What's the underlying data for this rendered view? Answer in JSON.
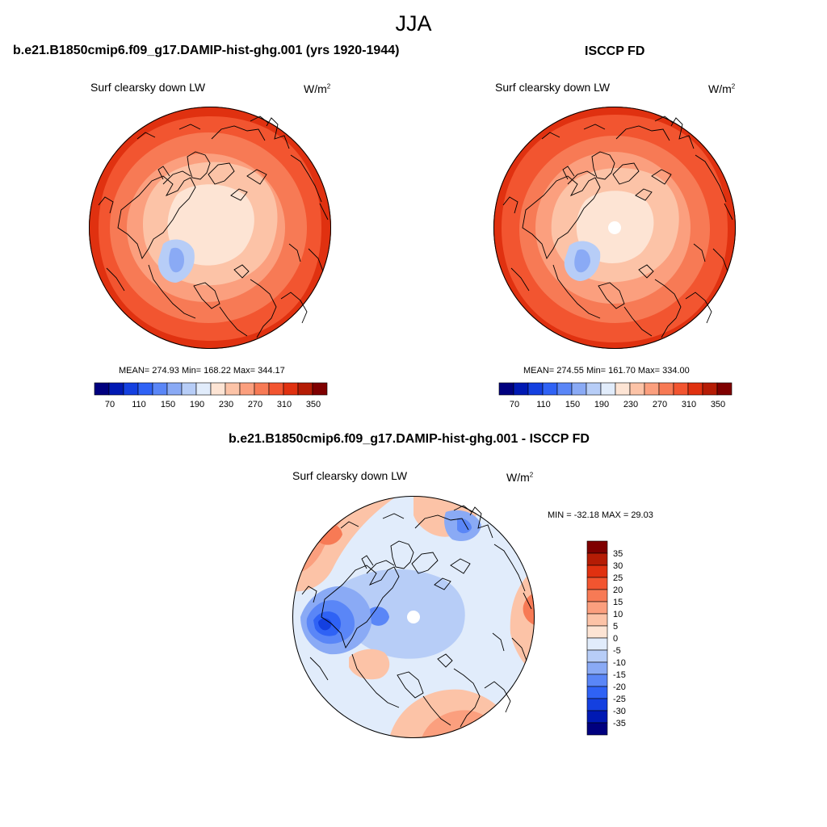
{
  "title": "JJA",
  "panels": [
    {
      "id": "model",
      "heading": "b.e21.B1850cmip6.f09_g17.DAMIP-hist-ghg.001 (yrs 1920-1944)",
      "variable": "Surf clearsky down LW",
      "units_base": "W/m",
      "units_sup": "2",
      "stats": "MEAN= 274.93  Min= 168.22  Max= 344.17",
      "colorbar_ticks": [
        "70",
        "110",
        "150",
        "190",
        "230",
        "270",
        "310",
        "350"
      ],
      "colorbar_colors": [
        "#00007f",
        "#0019b3",
        "#1440e0",
        "#2f62f5",
        "#5a86f7",
        "#8aaaf5",
        "#b7cdf7",
        "#e1ecfb",
        "#fde4d4",
        "#fcc3a7",
        "#fb9f7e",
        "#f77a55",
        "#f25530",
        "#e03110",
        "#b51c05",
        "#7f0000"
      ]
    },
    {
      "id": "obs",
      "heading": "ISCCP FD",
      "variable": "Surf clearsky down LW",
      "units_base": "W/m",
      "units_sup": "2",
      "stats": "MEAN= 274.55  Min= 161.70  Max= 334.00",
      "colorbar_ticks": [
        "70",
        "110",
        "150",
        "190",
        "230",
        "270",
        "310",
        "350"
      ],
      "colorbar_colors": [
        "#00007f",
        "#0019b3",
        "#1440e0",
        "#2f62f5",
        "#5a86f7",
        "#8aaaf5",
        "#b7cdf7",
        "#e1ecfb",
        "#fde4d4",
        "#fcc3a7",
        "#fb9f7e",
        "#f77a55",
        "#f25530",
        "#e03110",
        "#b51c05",
        "#7f0000"
      ]
    },
    {
      "id": "diff",
      "heading": "b.e21.B1850cmip6.f09_g17.DAMIP-hist-ghg.001 - ISCCP FD",
      "variable": "Surf clearsky down LW",
      "units_base": "W/m",
      "units_sup": "2",
      "stats": "MIN = -32.18 MAX =  29.03",
      "colorbar_ticks": [
        "35",
        "30",
        "25",
        "20",
        "15",
        "10",
        "5",
        "0",
        "-5",
        "-10",
        "-15",
        "-20",
        "-25",
        "-30",
        "-35"
      ],
      "colorbar_colors": [
        "#7f0000",
        "#b51c05",
        "#e03110",
        "#f25530",
        "#f77a55",
        "#fb9f7e",
        "#fcc3a7",
        "#fde4d4",
        "#e1ecfb",
        "#b7cdf7",
        "#8aaaf5",
        "#5a86f7",
        "#2f62f5",
        "#1440e0",
        "#0019b3",
        "#00007f"
      ]
    }
  ]
}
